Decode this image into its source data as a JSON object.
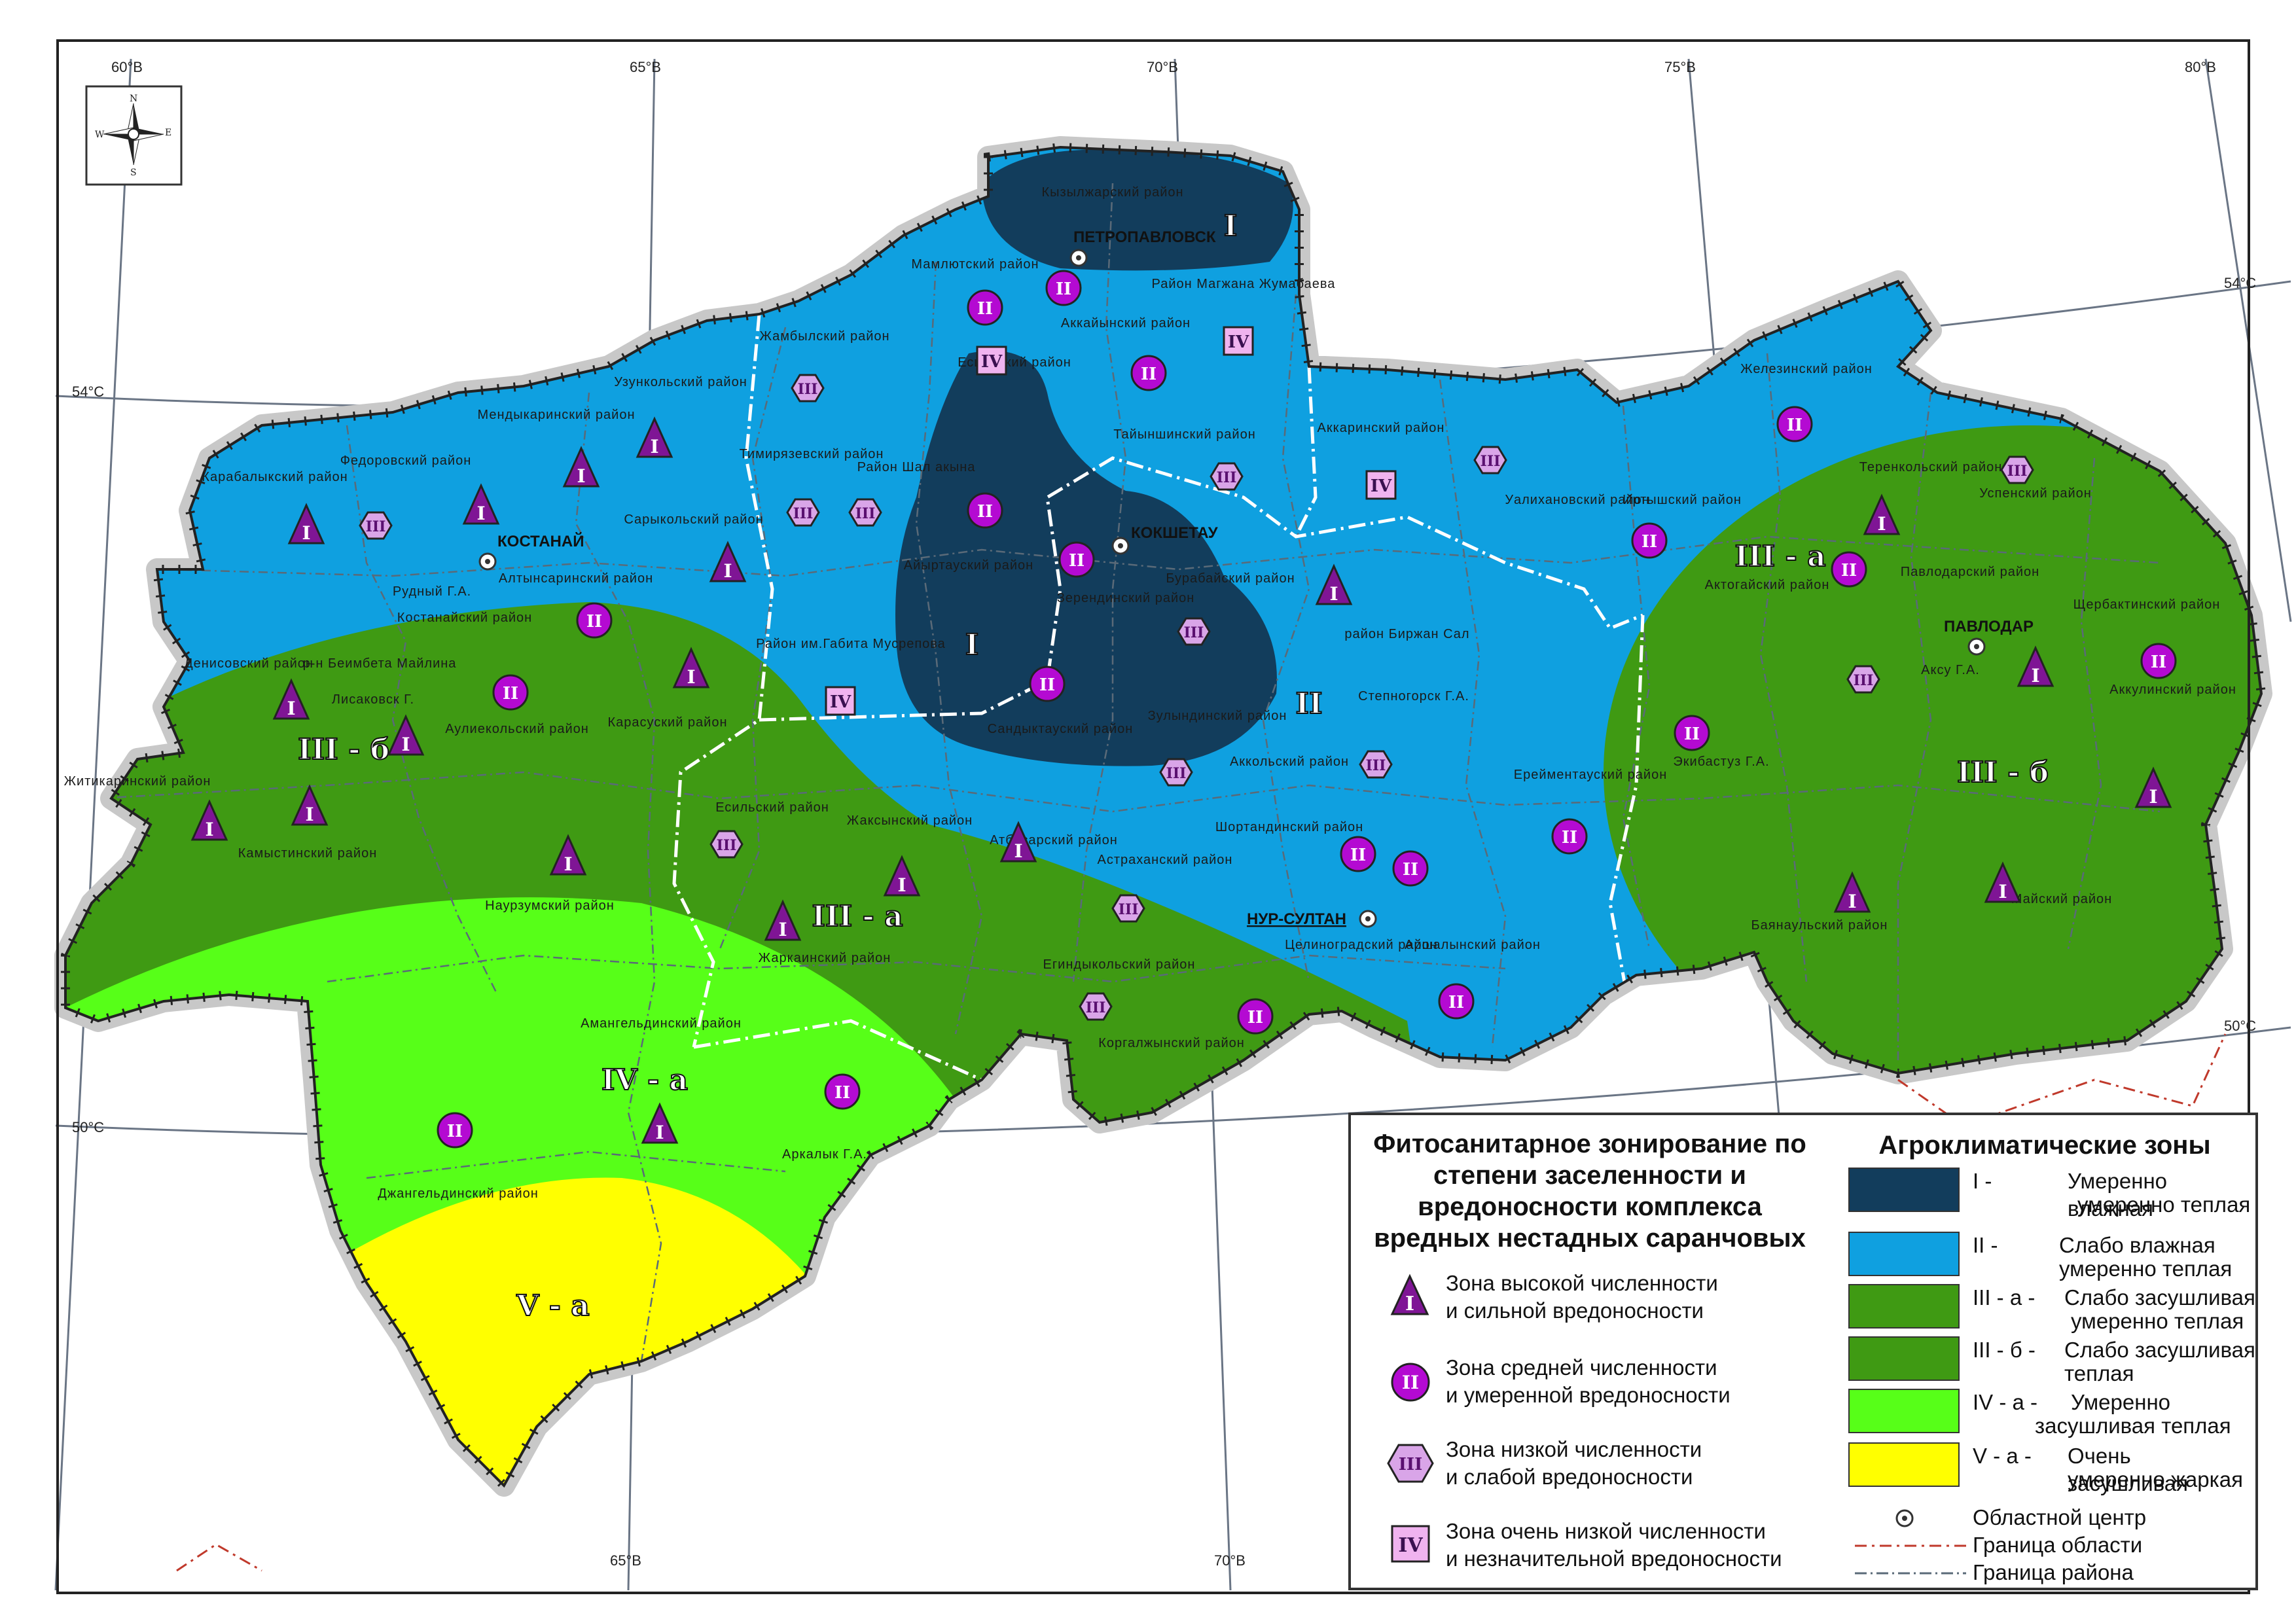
{
  "colors": {
    "zone_I": "#123d5c",
    "zone_II": "#0fa0e0",
    "zone_IIIa": "#3f9a13",
    "zone_IIIb": "#3f9a13",
    "zone_IVa": "#57ff18",
    "zone_Va": "#ffff00",
    "marker_purple": "#7f1595",
    "marker_magenta": "#b40ad2",
    "marker_light": "#d9a5e8",
    "marker_pink": "#f0b3ef"
  },
  "grid": {
    "top_lon": [
      "60°В",
      "65°В",
      "70°В",
      "75°В",
      "80°В"
    ],
    "bottom_lon": [
      "65°В",
      "70°В"
    ],
    "lat_left": [
      "54°С",
      "50°С"
    ],
    "lat_right": [
      "54°С",
      "50°С"
    ]
  },
  "compass": {
    "n": "N",
    "s": "S",
    "e": "E",
    "w": "W"
  },
  "zones": {
    "I_north": "I",
    "I_center": "I",
    "II": "II",
    "IIIa_west": "III - а",
    "IIIa_east": "III - а",
    "IIIb_west": "III - б",
    "IIIb_east": "III - б",
    "IVa": "IV - а",
    "Va": "V - а"
  },
  "cities": {
    "petropavlovsk": "ПЕТРОПАВЛОВСК",
    "kostanay": "КОСТАНАЙ",
    "kokshetau": "КОКШЕТАУ",
    "pavlodar": "ПАВЛОДАР",
    "nur_sultan": "НУР-СУЛТАН"
  },
  "districts": [
    "Кызылжарский район",
    "Мамлютский район",
    "Район Магжана Жумабаева",
    "Жамбылский район",
    "Аккайынский район",
    "Есильский район",
    "Тайыншинский район",
    "Аккаринский район",
    "Узункольский район",
    "Мендыкаринский район",
    "Федоровский район",
    "Карабалыкский район",
    "Тимирязевский район",
    "Район Шал акына",
    "Айыртауский район",
    "Сарыкольский район",
    "Костанайский район",
    "Алтынсаринский район",
    "Бурабайский район",
    "Уалихановский район",
    "Иртышский район",
    "Железинский район",
    "Теренкольский район",
    "Успенский район",
    "Рудный Г.А.",
    "Денисовский район",
    "р-н Беимбета Майлина",
    "Лисаковск Г.",
    "Аулиекольский район",
    "Карасуский район",
    "Район им.Габита Мусрепова",
    "Зерендинский район",
    "Сандыктауский район",
    "Зулындинский район",
    "район Биржан Сал",
    "Степногорск Г.А.",
    "Аккольский район",
    "Ерейментауский район",
    "Актогайский район",
    "Павлодарский район",
    "Щербактинский район",
    "Аксу Г.А.",
    "Экибастуз Г.А.",
    "Аккулинский район",
    "Житикаринский район",
    "Камыстинский район",
    "Наурзумский район",
    "Есильский район",
    "Жаксынский район",
    "Атбасарский район",
    "Астраханский район",
    "Шортандинский район",
    "Баянаульский район",
    "Майский район",
    "Жаркаинский район",
    "Егиндыкольский район",
    "Целиноградский район",
    "Аршалынский район",
    "Коргалжынский район",
    "Амангельдинский район",
    "Аркалык Г.А.",
    "Джангельдинский район"
  ],
  "legend": {
    "pest_title": "Фитосанитарное зонирование по степени заселенности и вредоносности комплекса вредных нестадных саранчовых",
    "pest_items": [
      {
        "symbol": "I",
        "line1": "Зона высокой численности",
        "line2": "и сильной вредоносности"
      },
      {
        "symbol": "II",
        "line1": "Зона средней численности",
        "line2": "и умеренной вредоносности"
      },
      {
        "symbol": "III",
        "line1": "Зона низкой численности",
        "line2": "и слабой вредоносности"
      },
      {
        "symbol": "IV",
        "line1": "Зона очень низкой численности",
        "line2": "и незначительной вредоносности"
      }
    ],
    "agro_title": "Агроклиматические зоны",
    "agro_items": [
      {
        "code": "I -",
        "line1": "Умеренно влажная",
        "line2": "умеренно теплая"
      },
      {
        "code": "II -",
        "line1": "Слабо влажная",
        "line2": "умеренно теплая"
      },
      {
        "code": "III - а -",
        "line1": "Слабо засушливая",
        "line2": "умеренно теплая"
      },
      {
        "code": "III - б -",
        "line1": "Слабо засушливая",
        "line2": "теплая"
      },
      {
        "code": "IV - а -",
        "line1": "Умеренно",
        "line2": "засушливая теплая"
      },
      {
        "code": "V - а -",
        "line1": "Очень засушливая",
        "line2": "умеренно жаркая"
      }
    ],
    "center_label": "Областной центр",
    "oblast_border_label": "Граница области",
    "district_border_label": "Граница района"
  }
}
